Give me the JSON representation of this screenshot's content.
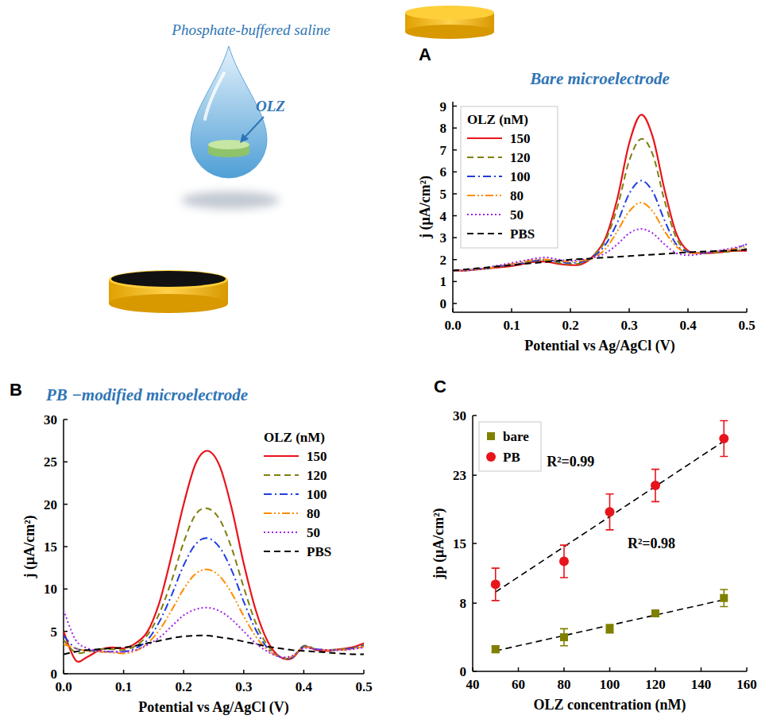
{
  "illustration": {
    "solution_label": "Phosphate-buffered saline",
    "drug_label": "OLZ"
  },
  "chart_data": [
    {
      "type": "line",
      "panel_label": "A",
      "title": "Bare microelectrode",
      "x_label": "Potential vs Ag/AgCl (V)",
      "y_label": "j (μA/cm²)",
      "legend_title": "OLZ (nM)",
      "legend": "top-left",
      "grid": false,
      "x": [
        0,
        0.02,
        0.04,
        0.06,
        0.08,
        0.1,
        0.12,
        0.14,
        0.16,
        0.18,
        0.2,
        0.22,
        0.24,
        0.26,
        0.28,
        0.3,
        0.32,
        0.34,
        0.36,
        0.38,
        0.4,
        0.42,
        0.44,
        0.46,
        0.48,
        0.5
      ],
      "xlim": [
        0,
        0.5
      ],
      "xticks": [
        {
          "value": 0,
          "label": "0.0"
        },
        0.1,
        0.2,
        0.3,
        0.4,
        0.5
      ],
      "ylim": [
        -0.4,
        9.2
      ],
      "yticks": [
        0,
        1,
        2,
        3,
        4,
        5,
        6,
        7,
        8,
        9
      ],
      "series": [
        {
          "name": "150",
          "color": "#e8141b",
          "line_style": "solid",
          "values": [
            1.5,
            1.5,
            1.55,
            1.6,
            1.65,
            1.7,
            1.8,
            1.9,
            1.9,
            1.8,
            1.75,
            1.8,
            2.2,
            3.0,
            4.8,
            7.3,
            8.6,
            7.6,
            5.2,
            3.2,
            2.4,
            2.3,
            2.3,
            2.35,
            2.4,
            2.4
          ]
        },
        {
          "name": "120",
          "color": "#7f7f10",
          "line_style": "dashed",
          "values": [
            1.5,
            1.5,
            1.55,
            1.6,
            1.7,
            1.75,
            1.85,
            1.95,
            1.95,
            1.85,
            1.8,
            1.85,
            2.2,
            2.9,
            4.4,
            6.5,
            7.5,
            6.8,
            4.7,
            3.0,
            2.35,
            2.3,
            2.3,
            2.35,
            2.4,
            2.5
          ]
        },
        {
          "name": "100",
          "color": "#1f3fe0",
          "line_style": "dash-dot",
          "values": [
            1.5,
            1.5,
            1.55,
            1.6,
            1.7,
            1.75,
            1.85,
            1.95,
            2.0,
            1.9,
            1.85,
            1.9,
            2.15,
            2.7,
            3.7,
            5.0,
            5.6,
            5.1,
            3.8,
            2.7,
            2.35,
            2.3,
            2.35,
            2.4,
            2.5,
            2.7
          ]
        },
        {
          "name": "80",
          "color": "#ff8c00",
          "line_style": "dash-dot-dot",
          "values": [
            1.5,
            1.5,
            1.55,
            1.6,
            1.7,
            1.8,
            1.9,
            2.0,
            2.0,
            1.95,
            1.9,
            1.95,
            2.1,
            2.5,
            3.3,
            4.2,
            4.6,
            4.2,
            3.3,
            2.6,
            2.3,
            2.3,
            2.35,
            2.4,
            2.5,
            2.6
          ]
        },
        {
          "name": "50",
          "color": "#a020f0",
          "line_style": "dotted",
          "values": [
            1.5,
            1.5,
            1.55,
            1.65,
            1.75,
            1.85,
            1.95,
            2.05,
            2.1,
            2.0,
            1.95,
            2.0,
            2.1,
            2.3,
            2.7,
            3.2,
            3.4,
            3.2,
            2.7,
            2.3,
            2.2,
            2.25,
            2.35,
            2.45,
            2.55,
            2.7
          ]
        },
        {
          "name": "PBS",
          "color": "#000000",
          "line_style": "dashed",
          "values": [
            1.5,
            1.55,
            1.6,
            1.65,
            1.7,
            1.75,
            1.8,
            1.85,
            1.9,
            1.95,
            2.0,
            2.03,
            2.06,
            2.1,
            2.13,
            2.16,
            2.2,
            2.23,
            2.26,
            2.3,
            2.33,
            2.36,
            2.38,
            2.4,
            2.43,
            2.45
          ]
        }
      ]
    },
    {
      "type": "line",
      "panel_label": "B",
      "title": "PB −modified microelectrode",
      "x_label": "Potential vs Ag/AgCl (V)",
      "y_label": "j (μA/cm²)",
      "legend_title": "OLZ (nM)",
      "legend": "top-right",
      "grid": false,
      "x": [
        0,
        0.02,
        0.04,
        0.06,
        0.08,
        0.1,
        0.12,
        0.14,
        0.16,
        0.18,
        0.2,
        0.22,
        0.24,
        0.26,
        0.28,
        0.3,
        0.32,
        0.34,
        0.36,
        0.38,
        0.4,
        0.42,
        0.44,
        0.46,
        0.48,
        0.5
      ],
      "xlim": [
        0,
        0.5
      ],
      "xticks": [
        {
          "value": 0,
          "label": "0.0"
        },
        0.1,
        0.2,
        0.3,
        0.4,
        0.5
      ],
      "ylim": [
        0,
        30
      ],
      "yticks": [
        0,
        5,
        10,
        15,
        20,
        25,
        30
      ],
      "series": [
        {
          "name": "150",
          "color": "#e8141b",
          "line_style": "solid",
          "values": [
            5.0,
            1.6,
            2.0,
            2.8,
            3.1,
            3.0,
            3.6,
            5.0,
            8.5,
            14.0,
            20.0,
            24.8,
            26.3,
            24.5,
            19.5,
            13.0,
            7.5,
            3.8,
            2.0,
            1.8,
            3.2,
            2.8,
            2.7,
            2.9,
            3.1,
            3.6
          ]
        },
        {
          "name": "120",
          "color": "#7f7f10",
          "line_style": "dashed",
          "values": [
            4.0,
            2.5,
            2.6,
            2.9,
            2.9,
            2.8,
            3.3,
            4.6,
            7.2,
            11.0,
            15.5,
            18.8,
            19.5,
            18.2,
            14.8,
            10.2,
            6.0,
            3.3,
            2.0,
            1.9,
            3.3,
            2.9,
            2.8,
            2.9,
            3.0,
            3.4
          ]
        },
        {
          "name": "100",
          "color": "#1f3fe0",
          "line_style": "dash-dot",
          "values": [
            4.5,
            3.0,
            2.8,
            2.6,
            2.6,
            2.6,
            3.0,
            4.0,
            6.2,
            9.3,
            12.8,
            15.3,
            16.0,
            14.9,
            12.2,
            8.5,
            5.2,
            3.0,
            2.0,
            1.9,
            3.2,
            2.9,
            2.8,
            2.8,
            3.0,
            3.3
          ]
        },
        {
          "name": "80",
          "color": "#ff8c00",
          "line_style": "dash-dot-dot",
          "values": [
            3.5,
            3.0,
            2.7,
            2.6,
            2.5,
            2.4,
            2.7,
            3.6,
            5.2,
            7.5,
            10.0,
            11.8,
            12.3,
            11.5,
            9.5,
            6.8,
            4.4,
            2.8,
            2.0,
            2.0,
            3.1,
            2.9,
            2.8,
            2.8,
            2.9,
            3.2
          ]
        },
        {
          "name": "50",
          "color": "#a020f0",
          "line_style": "dotted",
          "values": [
            7.5,
            4.0,
            3.0,
            2.7,
            2.6,
            2.6,
            2.8,
            3.4,
            4.3,
            5.6,
            6.9,
            7.6,
            7.8,
            7.4,
            6.4,
            5.0,
            3.6,
            2.6,
            2.0,
            2.1,
            3.0,
            2.9,
            2.8,
            2.8,
            2.9,
            3.1
          ]
        },
        {
          "name": "PBS",
          "color": "#000000",
          "line_style": "dashed",
          "values": [
            2.3,
            2.6,
            2.8,
            2.9,
            3.0,
            3.1,
            3.3,
            3.6,
            3.9,
            4.2,
            4.4,
            4.5,
            4.5,
            4.3,
            4.1,
            3.8,
            3.5,
            3.2,
            3.0,
            2.8,
            2.7,
            2.6,
            2.5,
            2.4,
            2.3,
            2.3
          ]
        }
      ]
    },
    {
      "type": "scatter",
      "panel_label": "C",
      "x_label": "OLZ concentration (nM)",
      "y_label": "jp (μA/cm²)",
      "legend": "top-left",
      "grid": false,
      "x": [
        50,
        80,
        100,
        120,
        150
      ],
      "xlim": [
        40,
        160
      ],
      "xticks": [
        40,
        60,
        80,
        100,
        120,
        140,
        160
      ],
      "ylim": [
        0,
        30
      ],
      "yticks": [
        0,
        8,
        15,
        23,
        30
      ],
      "series": [
        {
          "name": "bare",
          "color": "#808000",
          "marker": "square",
          "values": [
            2.6,
            4.0,
            5.0,
            6.8,
            8.6
          ],
          "errors": [
            0.4,
            1.0,
            0.5,
            0.4,
            1.0
          ],
          "fit": {
            "x": [
              50,
              150
            ],
            "values": [
              2.4,
              8.4
            ],
            "label": "R²=0.98",
            "color": "#000000",
            "line_style": "dashed"
          }
        },
        {
          "name": "PB",
          "color": "#e8141b",
          "marker": "circle",
          "values": [
            10.2,
            12.9,
            18.7,
            21.8,
            27.3
          ],
          "errors": [
            1.9,
            1.9,
            2.1,
            1.9,
            2.1
          ],
          "fit": {
            "x": [
              50,
              150
            ],
            "values": [
              9.3,
              27.0
            ],
            "label": "R²=0.99",
            "color": "#000000",
            "line_style": "dashed"
          }
        }
      ]
    }
  ]
}
